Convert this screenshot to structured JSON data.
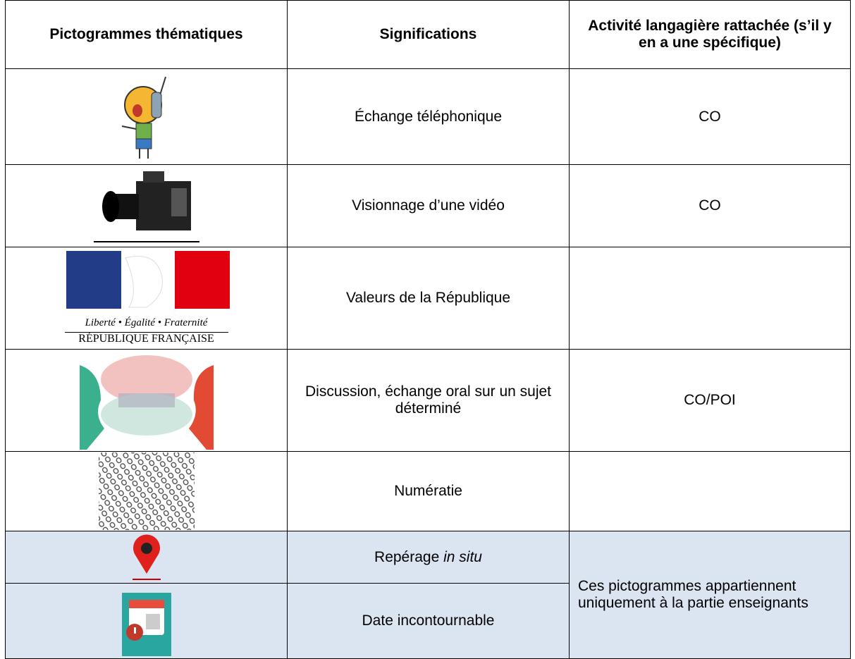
{
  "table": {
    "header": [
      "Pictogrammes thématiques",
      "Significations",
      "Activité langagière rattachée (s’il y en a une spécifique)"
    ],
    "rows": [
      {
        "meaning": "Échange téléphonique",
        "activity": "CO"
      },
      {
        "meaning": "Visionnage d’une vidéo",
        "activity": "CO"
      },
      {
        "meaning": "Valeurs de la République",
        "logo_motto": "Liberté • Égalité • Fraternité",
        "logo_name": "RÉPUBLIQUE FRANÇAISE"
      },
      {
        "meaning": "Discussion, échange oral sur un sujet déterminé",
        "activity": "CO/POI"
      },
      {
        "meaning": "Numératie"
      },
      {
        "meaning": "Repérage",
        "meaning_italic": "in situ"
      },
      {
        "meaning": "Date incontournable"
      }
    ],
    "shared_activity": "Ces pictogrammes appartiennent uniquement à la partie enseignants"
  }
}
